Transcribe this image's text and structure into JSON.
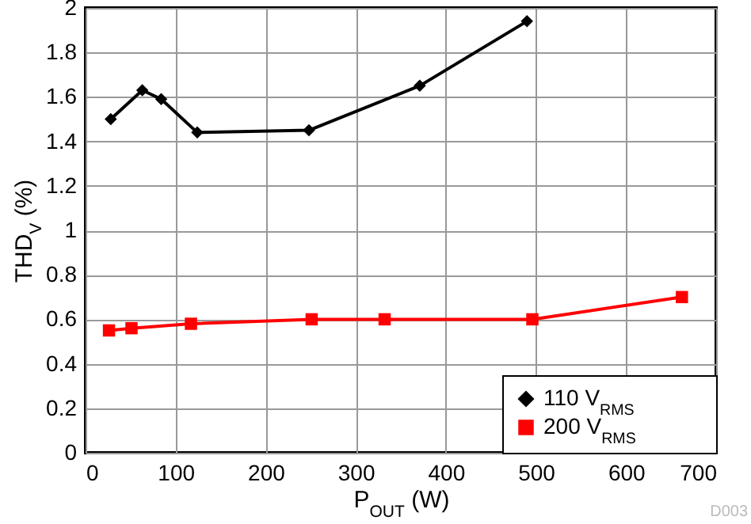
{
  "chart_data": {
    "type": "line",
    "xlabel": "P$_{OUT}$ (W)",
    "ylabel": "THD$_{V}$ (%)",
    "xlim": [
      0,
      700
    ],
    "xticks": [
      0,
      100,
      200,
      300,
      400,
      500,
      600,
      700
    ],
    "ylim": [
      0,
      2
    ],
    "yticks": [
      0,
      0.2,
      0.4,
      0.6,
      0.8,
      1,
      1.2,
      1.4,
      1.6,
      1.8,
      2
    ],
    "grid": true,
    "legend": "bottom right",
    "annotations": [
      "D003"
    ],
    "series": [
      {
        "name": "110 V$_{RMS}$",
        "color": "#000000",
        "marker": "diamond",
        "x": [
          28,
          63,
          84,
          124,
          248,
          371,
          490
        ],
        "values": [
          1.5,
          1.63,
          1.59,
          1.44,
          1.45,
          1.65,
          1.94
        ]
      },
      {
        "name": "200 V$_{RMS}$",
        "color": "#ff0000",
        "marker": "square",
        "x": [
          26,
          51,
          117,
          251,
          332,
          496,
          662
        ],
        "values": [
          0.55,
          0.56,
          0.58,
          0.6,
          0.6,
          0.6,
          0.7
        ]
      }
    ]
  }
}
